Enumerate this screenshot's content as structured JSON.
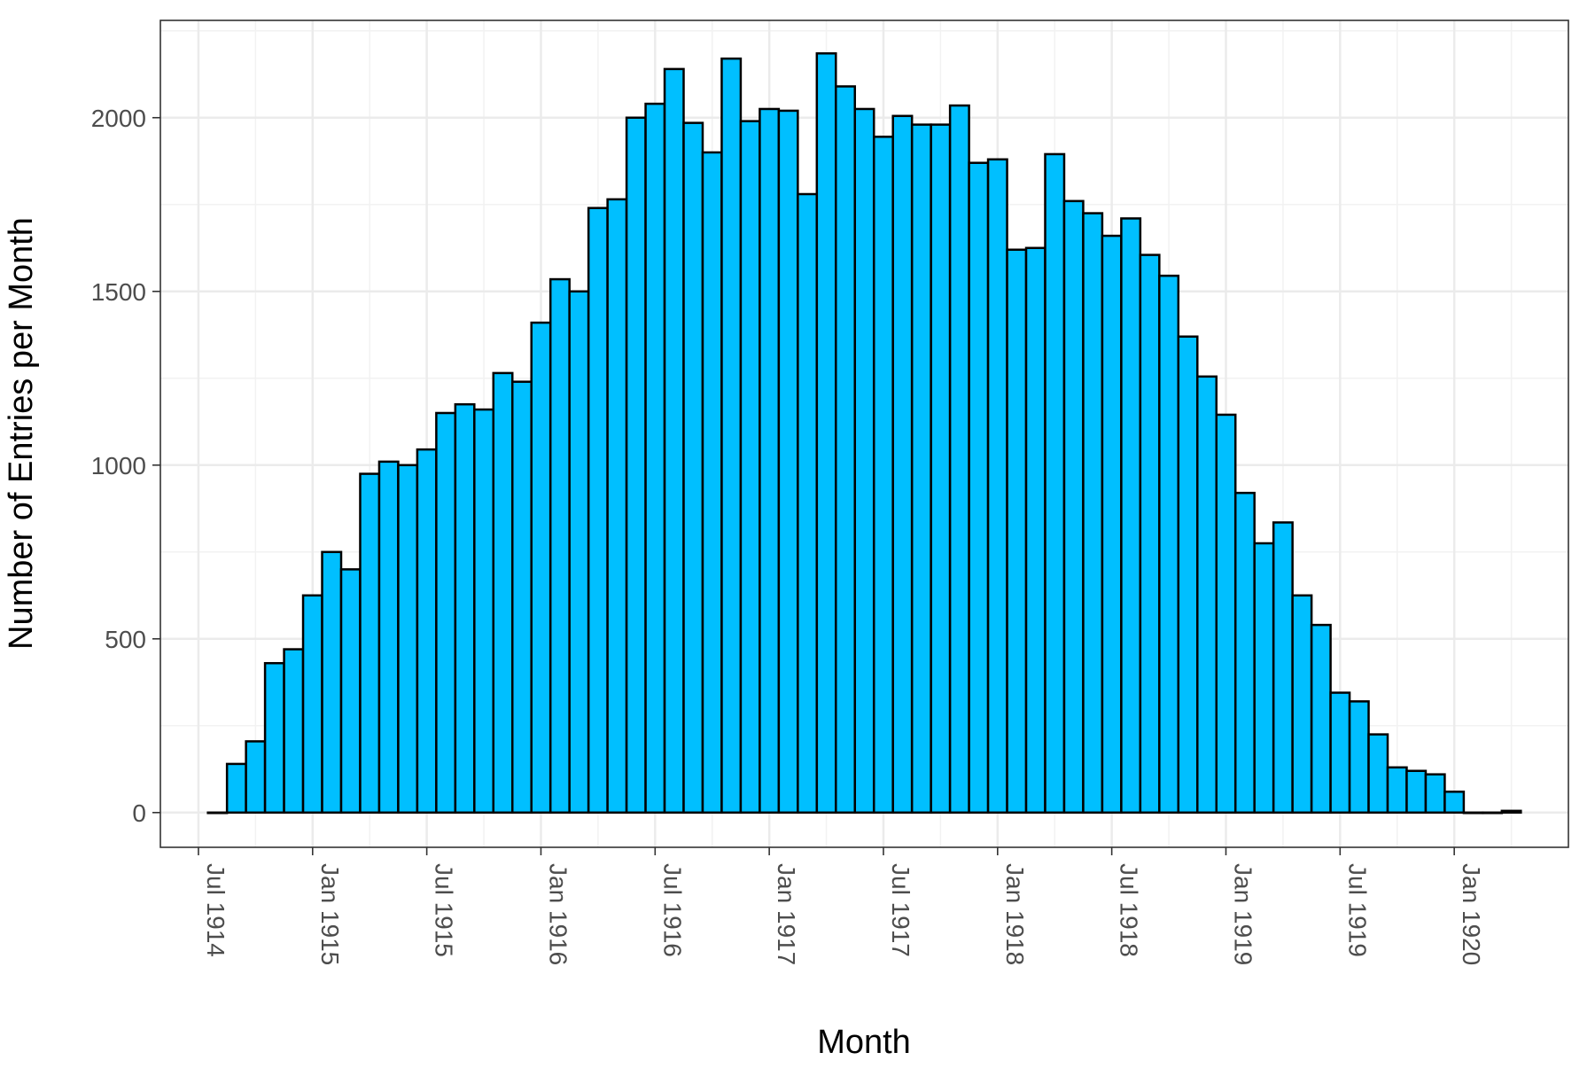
{
  "chart_data": {
    "type": "bar",
    "xlabel": "Month",
    "ylabel": "Number of Entries per Month",
    "x_ticks": [
      "Jul 1914",
      "Jan 1915",
      "Jul 1915",
      "Jan 1916",
      "Jul 1916",
      "Jan 1917",
      "Jul 1917",
      "Jan 1918",
      "Jul 1918",
      "Jan 1919",
      "Jul 1919",
      "Jan 1920"
    ],
    "y_ticks": [
      "0",
      "500",
      "1000",
      "1500",
      "2000"
    ],
    "ylim": [
      -100,
      2280
    ],
    "xlim": [
      "1914-05",
      "1920-07"
    ],
    "grid": true,
    "colors": {
      "bar_fill": "#00bfff",
      "bar_outline": "#000000",
      "grid": "#ebebeb",
      "panel_border": "#333333"
    },
    "categories": [
      "1914-08",
      "1914-09",
      "1914-10",
      "1914-11",
      "1914-12",
      "1915-01",
      "1915-02",
      "1915-03",
      "1915-04",
      "1915-05",
      "1915-06",
      "1915-07",
      "1915-08",
      "1915-09",
      "1915-10",
      "1915-11",
      "1915-12",
      "1916-01",
      "1916-02",
      "1916-03",
      "1916-04",
      "1916-05",
      "1916-06",
      "1916-07",
      "1916-08",
      "1916-09",
      "1916-10",
      "1916-11",
      "1916-12",
      "1917-01",
      "1917-02",
      "1917-03",
      "1917-04",
      "1917-05",
      "1917-06",
      "1917-07",
      "1917-08",
      "1917-09",
      "1917-10",
      "1917-11",
      "1917-12",
      "1918-01",
      "1918-02",
      "1918-03",
      "1918-04",
      "1918-05",
      "1918-06",
      "1918-07",
      "1918-08",
      "1918-09",
      "1918-10",
      "1918-11",
      "1918-12",
      "1919-01",
      "1919-02",
      "1919-03",
      "1919-04",
      "1919-05",
      "1919-06",
      "1919-07",
      "1919-08",
      "1919-09",
      "1919-10",
      "1919-11",
      "1919-12",
      "1920-01",
      "1920-02",
      "1920-03",
      "1920-04"
    ],
    "values": [
      0,
      140,
      205,
      430,
      470,
      625,
      750,
      700,
      975,
      1010,
      1000,
      1045,
      1150,
      1175,
      1160,
      1265,
      1240,
      1410,
      1535,
      1500,
      1740,
      1765,
      2000,
      2040,
      2140,
      1985,
      1900,
      2170,
      1990,
      2025,
      2020,
      1780,
      2185,
      2090,
      2025,
      1945,
      2005,
      1980,
      1980,
      2035,
      1870,
      1880,
      1620,
      1625,
      1895,
      1760,
      1725,
      1660,
      1710,
      1605,
      1545,
      1370,
      1255,
      1145,
      920,
      775,
      835,
      625,
      540,
      345,
      320,
      225,
      130,
      120,
      110,
      60,
      0,
      0,
      5
    ]
  }
}
